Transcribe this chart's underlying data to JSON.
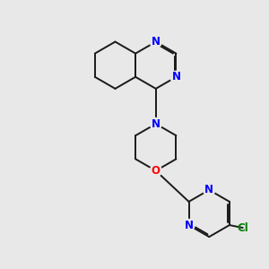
{
  "bg_color": "#e8e8e8",
  "bond_color": "#1a1a1a",
  "N_color": "#0000ff",
  "O_color": "#ff0000",
  "Cl_color": "#008000",
  "lw": 1.4,
  "dbo": 0.055,
  "figsize": [
    3.0,
    3.0
  ],
  "dpi": 100,
  "xlim": [
    0,
    10
  ],
  "ylim": [
    0,
    10
  ]
}
